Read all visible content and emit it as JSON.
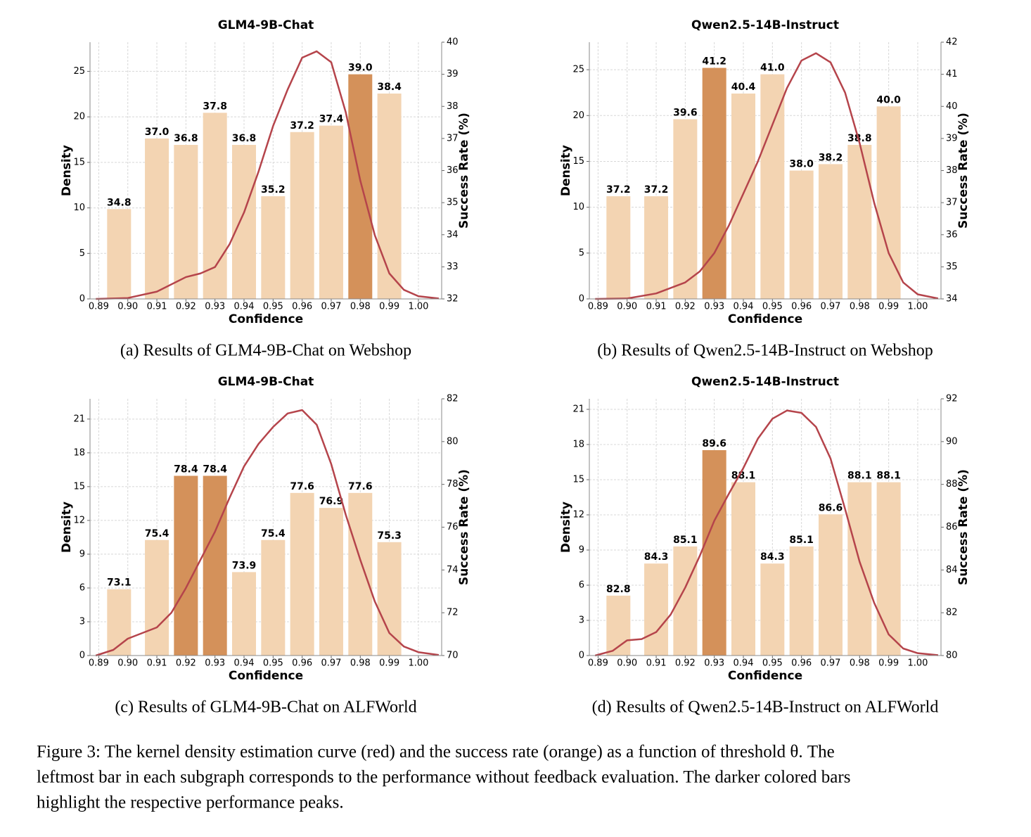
{
  "chart_data": [
    {
      "type": "bar",
      "title": "GLM4-9B-Chat",
      "xlabel": "Confidence",
      "ylabel": "Density",
      "y2label": "Success Rate (%)",
      "xlim": [
        0.887,
        1.008
      ],
      "xticks": [
        {
          "value": 0.89,
          "label": "0.89"
        },
        {
          "value": 0.9,
          "label": "0.90"
        },
        {
          "value": 0.91,
          "label": "0.91"
        },
        {
          "value": 0.92,
          "label": "0.92"
        },
        {
          "value": 0.93,
          "label": "0.93"
        },
        {
          "value": 0.94,
          "label": "0.94"
        },
        {
          "value": 0.95,
          "label": "0.95"
        },
        {
          "value": 0.96,
          "label": "0.96"
        },
        {
          "value": 0.97,
          "label": "0.97"
        },
        {
          "value": 0.98,
          "label": "0.98"
        },
        {
          "value": 0.99,
          "label": "0.99"
        },
        {
          "value": 1.0,
          "label": "1.00"
        }
      ],
      "ylim": [
        0,
        28.2
      ],
      "yticks": [
        0,
        5,
        10,
        15,
        20,
        25
      ],
      "y2lim": [
        32,
        40
      ],
      "y2ticks": [
        32,
        33,
        34,
        35,
        36,
        37,
        38,
        39,
        40
      ],
      "grid": true,
      "series": [
        {
          "type": "bar",
          "axis": "y2",
          "x": [
            0.897,
            0.91,
            0.92,
            0.93,
            0.94,
            0.95,
            0.96,
            0.97,
            0.98,
            0.99
          ],
          "values": [
            34.8,
            37.0,
            36.8,
            37.8,
            36.8,
            35.2,
            37.2,
            37.4,
            39.0,
            38.4
          ],
          "value_labels": [
            "34.8",
            "37.0",
            "36.8",
            "37.8",
            "36.8",
            "35.2",
            "37.2",
            "37.4",
            "39.0",
            "38.4"
          ],
          "colors": [
            "#f3d4b2",
            "#f3d4b2",
            "#f3d4b2",
            "#f3d4b2",
            "#f3d4b2",
            "#f3d4b2",
            "#f3d4b2",
            "#f3d4b2",
            "#d4915a",
            "#f3d4b2"
          ]
        },
        {
          "type": "line",
          "color": "#b5444b",
          "x": [
            0.889,
            0.9,
            0.91,
            0.92,
            0.925,
            0.93,
            0.935,
            0.94,
            0.945,
            0.95,
            0.955,
            0.96,
            0.965,
            0.97,
            0.975,
            0.98,
            0.985,
            0.99,
            0.995,
            1.0,
            1.007
          ],
          "values": [
            0,
            0.1,
            0.8,
            2.4,
            2.8,
            3.5,
            6,
            9.5,
            14,
            19,
            23,
            26.5,
            27.2,
            26,
            20.5,
            13,
            7,
            2.8,
            1,
            0.3,
            0.05
          ]
        }
      ]
    },
    {
      "type": "bar",
      "title": "Qwen2.5-14B-Instruct",
      "xlabel": "Confidence",
      "ylabel": "Density",
      "y2label": "Success Rate (%)",
      "xlim": [
        0.887,
        1.008
      ],
      "xticks": [
        {
          "value": 0.89,
          "label": "0.89"
        },
        {
          "value": 0.9,
          "label": "0.90"
        },
        {
          "value": 0.91,
          "label": "0.91"
        },
        {
          "value": 0.92,
          "label": "0.92"
        },
        {
          "value": 0.93,
          "label": "0.93"
        },
        {
          "value": 0.94,
          "label": "0.94"
        },
        {
          "value": 0.95,
          "label": "0.95"
        },
        {
          "value": 0.96,
          "label": "0.96"
        },
        {
          "value": 0.97,
          "label": "0.97"
        },
        {
          "value": 0.98,
          "label": "0.98"
        },
        {
          "value": 0.99,
          "label": "0.99"
        },
        {
          "value": 1.0,
          "label": "1.00"
        }
      ],
      "ylim": [
        0,
        28
      ],
      "yticks": [
        0,
        5,
        10,
        15,
        20,
        25
      ],
      "y2lim": [
        34,
        42
      ],
      "y2ticks": [
        34,
        35,
        36,
        37,
        38,
        39,
        40,
        41,
        42
      ],
      "grid": true,
      "series": [
        {
          "type": "bar",
          "axis": "y2",
          "x": [
            0.897,
            0.91,
            0.92,
            0.93,
            0.94,
            0.95,
            0.96,
            0.97,
            0.98,
            0.99
          ],
          "values": [
            37.2,
            37.2,
            39.6,
            41.2,
            40.4,
            41.0,
            38.0,
            38.2,
            38.8,
            40.0
          ],
          "value_labels": [
            "37.2",
            "37.2",
            "39.6",
            "41.2",
            "40.4",
            "41.0",
            "38.0",
            "38.2",
            "38.8",
            "40.0"
          ],
          "colors": [
            "#f3d4b2",
            "#f3d4b2",
            "#f3d4b2",
            "#d4915a",
            "#f3d4b2",
            "#f3d4b2",
            "#f3d4b2",
            "#f3d4b2",
            "#f3d4b2",
            "#f3d4b2"
          ]
        },
        {
          "type": "line",
          "color": "#b5444b",
          "x": [
            0.889,
            0.9,
            0.91,
            0.92,
            0.925,
            0.93,
            0.935,
            0.94,
            0.945,
            0.95,
            0.955,
            0.96,
            0.965,
            0.97,
            0.975,
            0.98,
            0.985,
            0.99,
            0.995,
            1.0,
            1.007
          ],
          "values": [
            0,
            0.05,
            0.6,
            1.8,
            3,
            5,
            8,
            11.5,
            15,
            19,
            23,
            26,
            26.8,
            25.8,
            22.5,
            17,
            10.5,
            5,
            1.8,
            0.5,
            0.05
          ]
        }
      ]
    },
    {
      "type": "bar",
      "title": "GLM4-9B-Chat",
      "xlabel": "Confidence",
      "ylabel": "Density",
      "y2label": "Success Rate (%)",
      "xlim": [
        0.887,
        1.008
      ],
      "xticks": [
        {
          "value": 0.89,
          "label": "0.89"
        },
        {
          "value": 0.9,
          "label": "0.90"
        },
        {
          "value": 0.91,
          "label": "0.91"
        },
        {
          "value": 0.92,
          "label": "0.92"
        },
        {
          "value": 0.93,
          "label": "0.93"
        },
        {
          "value": 0.94,
          "label": "0.94"
        },
        {
          "value": 0.95,
          "label": "0.95"
        },
        {
          "value": 0.96,
          "label": "0.96"
        },
        {
          "value": 0.97,
          "label": "0.97"
        },
        {
          "value": 0.98,
          "label": "0.98"
        },
        {
          "value": 0.99,
          "label": "0.99"
        },
        {
          "value": 1.0,
          "label": "1.00"
        }
      ],
      "ylim": [
        0,
        22.8
      ],
      "yticks": [
        0,
        3,
        6,
        9,
        12,
        15,
        18,
        21
      ],
      "y2lim": [
        70,
        82
      ],
      "y2ticks": [
        70,
        72,
        74,
        76,
        78,
        80,
        82
      ],
      "grid": true,
      "series": [
        {
          "type": "bar",
          "axis": "y2",
          "x": [
            0.897,
            0.91,
            0.92,
            0.93,
            0.94,
            0.95,
            0.96,
            0.97,
            0.98,
            0.99
          ],
          "values": [
            73.1,
            75.4,
            78.4,
            78.4,
            73.9,
            75.4,
            77.6,
            76.9,
            77.6,
            75.3
          ],
          "value_labels": [
            "73.1",
            "75.4",
            "78.4",
            "78.4",
            "73.9",
            "75.4",
            "77.6",
            "76.9",
            "77.6",
            "75.3"
          ],
          "colors": [
            "#f3d4b2",
            "#f3d4b2",
            "#d4915a",
            "#d4915a",
            "#f3d4b2",
            "#f3d4b2",
            "#f3d4b2",
            "#f3d4b2",
            "#f3d4b2",
            "#f3d4b2"
          ]
        },
        {
          "type": "line",
          "color": "#b5444b",
          "x": [
            0.889,
            0.895,
            0.9,
            0.905,
            0.91,
            0.915,
            0.92,
            0.925,
            0.93,
            0.935,
            0.94,
            0.945,
            0.95,
            0.955,
            0.96,
            0.965,
            0.97,
            0.975,
            0.98,
            0.985,
            0.99,
            0.995,
            1.0,
            1.007
          ],
          "values": [
            0,
            0.5,
            1.5,
            2,
            2.5,
            3.8,
            6,
            8.5,
            11,
            14,
            16.8,
            18.8,
            20.3,
            21.5,
            21.8,
            20.5,
            17,
            12.5,
            8.5,
            4.8,
            2,
            0.8,
            0.3,
            0.05
          ]
        }
      ]
    },
    {
      "type": "bar",
      "title": "Qwen2.5-14B-Instruct",
      "xlabel": "Confidence",
      "ylabel": "Density",
      "y2label": "Success Rate (%)",
      "xlim": [
        0.887,
        1.008
      ],
      "xticks": [
        {
          "value": 0.89,
          "label": "0.89"
        },
        {
          "value": 0.9,
          "label": "0.90"
        },
        {
          "value": 0.91,
          "label": "0.91"
        },
        {
          "value": 0.92,
          "label": "0.92"
        },
        {
          "value": 0.93,
          "label": "0.93"
        },
        {
          "value": 0.94,
          "label": "0.94"
        },
        {
          "value": 0.95,
          "label": "0.95"
        },
        {
          "value": 0.96,
          "label": "0.96"
        },
        {
          "value": 0.97,
          "label": "0.97"
        },
        {
          "value": 0.98,
          "label": "0.98"
        },
        {
          "value": 0.99,
          "label": "0.99"
        },
        {
          "value": 1.0,
          "label": "1.00"
        }
      ],
      "ylim": [
        0,
        21.9
      ],
      "yticks": [
        0,
        3,
        6,
        9,
        12,
        15,
        18,
        21
      ],
      "y2lim": [
        80,
        92
      ],
      "y2ticks": [
        80,
        82,
        84,
        86,
        88,
        90,
        92
      ],
      "grid": true,
      "series": [
        {
          "type": "bar",
          "axis": "y2",
          "x": [
            0.897,
            0.91,
            0.92,
            0.93,
            0.94,
            0.95,
            0.96,
            0.97,
            0.98,
            0.99
          ],
          "values": [
            82.8,
            84.3,
            85.1,
            89.6,
            88.1,
            84.3,
            85.1,
            86.6,
            88.1,
            88.1
          ],
          "value_labels": [
            "82.8",
            "84.3",
            "85.1",
            "89.6",
            "88.1",
            "84.3",
            "85.1",
            "86.6",
            "88.1",
            "88.1"
          ],
          "colors": [
            "#f3d4b2",
            "#f3d4b2",
            "#f3d4b2",
            "#d4915a",
            "#f3d4b2",
            "#f3d4b2",
            "#f3d4b2",
            "#f3d4b2",
            "#f3d4b2",
            "#f3d4b2"
          ]
        },
        {
          "type": "line",
          "color": "#b5444b",
          "x": [
            0.889,
            0.895,
            0.9,
            0.905,
            0.91,
            0.915,
            0.92,
            0.925,
            0.93,
            0.935,
            0.94,
            0.945,
            0.95,
            0.955,
            0.96,
            0.965,
            0.97,
            0.975,
            0.98,
            0.985,
            0.99,
            0.995,
            1.0,
            1.007
          ],
          "values": [
            0,
            0.4,
            1.3,
            1.4,
            2,
            3.5,
            5.8,
            8.5,
            11.5,
            13.8,
            16,
            18.5,
            20.2,
            20.9,
            20.7,
            19.5,
            16.8,
            12.5,
            8,
            4.5,
            1.8,
            0.6,
            0.2,
            0.03
          ]
        }
      ]
    }
  ],
  "figure": {
    "subcaptions": [
      "(a) Results of GLM4-9B-Chat on Webshop",
      "(b) Results of Qwen2.5-14B-Instruct on Webshop",
      "(c) Results of GLM4-9B-Chat on ALFWorld",
      "(d) Results of Qwen2.5-14B-Instruct on ALFWorld"
    ],
    "caption_lines": [
      "Figure 3: The kernel density estimation curve (red) and the success rate (orange) as a function of threshold θ. The",
      "leftmost bar in each subgraph corresponds to the performance without feedback evaluation. The darker colored bars",
      "highlight the respective performance peaks."
    ]
  }
}
